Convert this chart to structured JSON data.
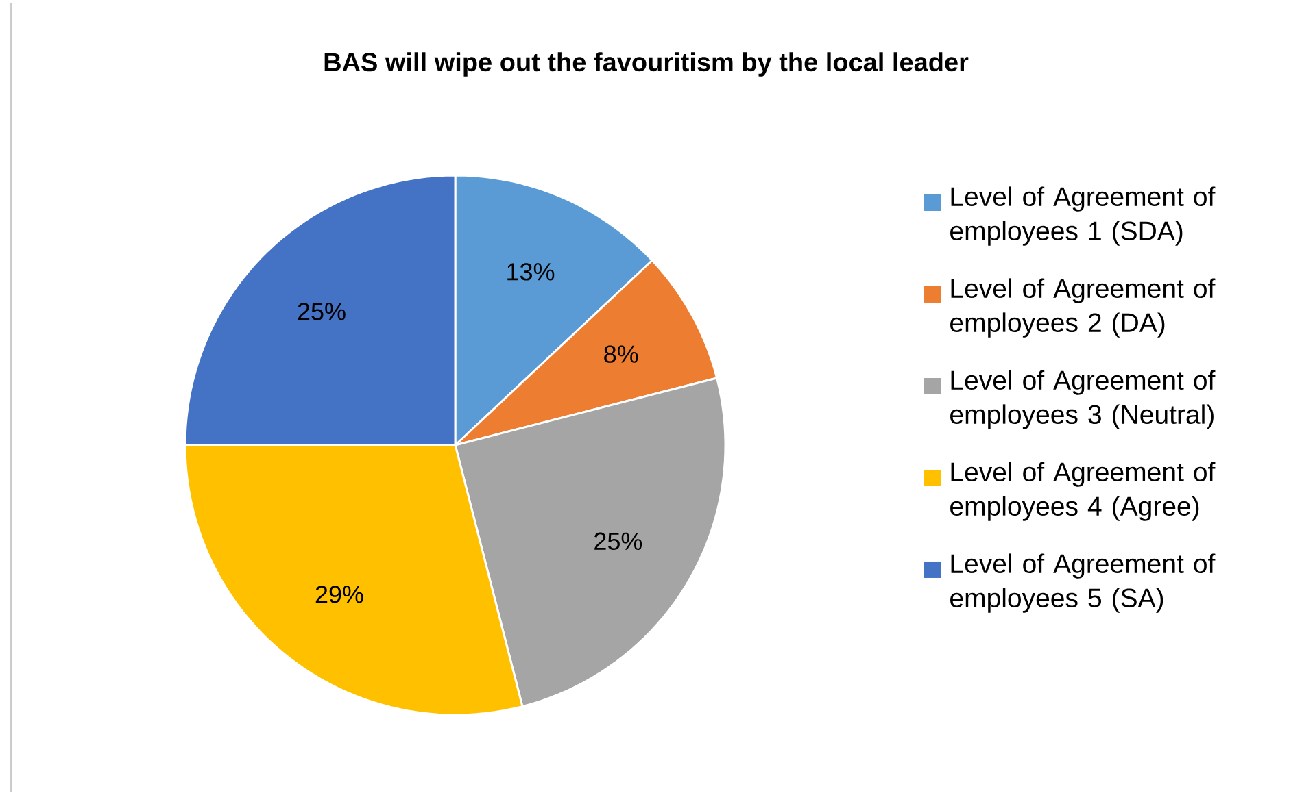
{
  "chart_data": {
    "type": "pie",
    "title": "BAS will wipe out the favouritism by the local leader",
    "categories": [
      "Level of Agreement of employees 1 (SDA)",
      "Level of Agreement of employees 2 (DA)",
      "Level of Agreement of employees 3 (Neutral)",
      "Level of Agreement of employees 4 (Agree)",
      "Level of Agreement of employees 5 (SA)"
    ],
    "values": [
      13,
      8,
      25,
      29,
      25
    ],
    "value_labels": [
      "13%",
      "8%",
      "25%",
      "29%",
      "25%"
    ],
    "colors": [
      "#5b9bd5",
      "#ed7d31",
      "#a5a5a5",
      "#ffc000",
      "#4472c4"
    ],
    "legend": "right"
  }
}
